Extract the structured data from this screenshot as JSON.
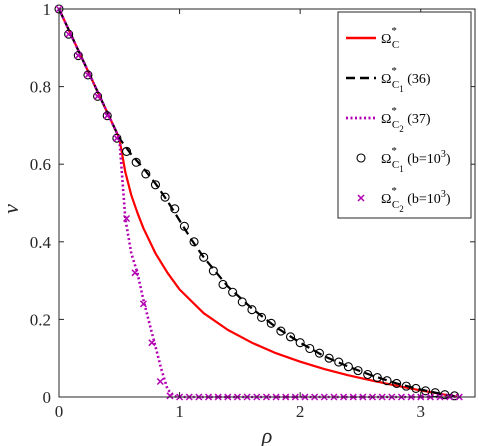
{
  "chart_data": {
    "type": "line",
    "title": "",
    "xlabel": "ρ",
    "ylabel": "ν",
    "xlim": [
      0,
      3.45
    ],
    "ylim": [
      0,
      1
    ],
    "xticks": [
      0,
      1,
      2,
      3
    ],
    "xtick_labels": [
      "0",
      "1",
      "2",
      "3"
    ],
    "yticks": [
      0,
      0.2,
      0.4,
      0.6,
      0.8,
      1
    ],
    "ytick_labels": [
      "0",
      "0.2",
      "0.4",
      "0.6",
      "0.8",
      "1"
    ],
    "grid": false,
    "legend_position": "top-right",
    "colors": {
      "red": "#ff0000",
      "black": "#000000",
      "magenta": "#b300b3"
    },
    "series": [
      {
        "name": "Ω*C",
        "legend": {
          "main": "Ω",
          "sup": "*",
          "sub": "C",
          "sub2": "",
          "suffix": ""
        },
        "style": "line-solid",
        "color": "#ff0000",
        "x": [
          0,
          0.5,
          0.55,
          0.6,
          0.65,
          0.7,
          0.8,
          0.9,
          1.0,
          1.2,
          1.4,
          1.6,
          1.8,
          2.0,
          2.2,
          2.4,
          2.6,
          2.8,
          3.0,
          3.2,
          3.3
        ],
        "y": [
          1,
          0.667,
          0.58,
          0.52,
          0.475,
          0.435,
          0.37,
          0.32,
          0.277,
          0.216,
          0.173,
          0.14,
          0.113,
          0.091,
          0.072,
          0.056,
          0.042,
          0.029,
          0.017,
          0.006,
          0.001
        ]
      },
      {
        "name": "Ω*C1 (36)",
        "legend": {
          "main": "Ω",
          "sup": "*",
          "sub": "C",
          "sub2": "1",
          "suffix": " (36)"
        },
        "style": "line-dashed",
        "color": "#000000",
        "x": [
          0,
          0.5,
          0.6,
          0.7,
          0.8,
          0.9,
          1.0,
          1.1,
          1.2,
          1.4,
          1.6,
          1.8,
          2.0,
          2.2,
          2.4,
          2.6,
          2.8,
          3.0,
          3.2,
          3.3
        ],
        "y": [
          1,
          0.667,
          0.625,
          0.59,
          0.55,
          0.505,
          0.455,
          0.405,
          0.36,
          0.285,
          0.228,
          0.18,
          0.14,
          0.105,
          0.078,
          0.055,
          0.035,
          0.019,
          0.006,
          0.001
        ]
      },
      {
        "name": "Ω*C2 (37)",
        "legend": {
          "main": "Ω",
          "sup": "*",
          "sub": "C",
          "sub2": "2",
          "suffix": " (37)"
        },
        "style": "line-dotted",
        "color": "#b300b3",
        "x": [
          0,
          0.5,
          0.55,
          0.6,
          0.65,
          0.7,
          0.75,
          0.8,
          0.85,
          0.9,
          0.95,
          1.0,
          1.5,
          2.0,
          2.5,
          3.0,
          3.3
        ],
        "y": [
          1,
          0.667,
          0.46,
          0.37,
          0.32,
          0.25,
          0.19,
          0.13,
          0.07,
          0.02,
          0.002,
          0.0,
          0.0,
          0.0,
          0.0,
          0.0,
          0.0
        ]
      },
      {
        "name": "Ω*C1 (b=10^3)",
        "legend": {
          "main": "Ω",
          "sup": "*",
          "sub": "C",
          "sub2": "1",
          "suffix": " (b=10",
          "suffix_sup": "3",
          "suffix_end": ")"
        },
        "style": "marker-circle",
        "color": "#000000",
        "x": [
          0.0,
          0.08,
          0.16,
          0.24,
          0.32,
          0.4,
          0.48,
          0.56,
          0.64,
          0.72,
          0.8,
          0.88,
          0.96,
          1.04,
          1.12,
          1.2,
          1.28,
          1.36,
          1.44,
          1.52,
          1.6,
          1.68,
          1.76,
          1.84,
          1.92,
          2.0,
          2.08,
          2.16,
          2.24,
          2.32,
          2.4,
          2.48,
          2.56,
          2.64,
          2.72,
          2.8,
          2.88,
          2.96,
          3.04,
          3.12,
          3.2,
          3.28
        ],
        "y": [
          1.0,
          0.935,
          0.88,
          0.83,
          0.775,
          0.725,
          0.667,
          0.633,
          0.605,
          0.575,
          0.547,
          0.515,
          0.485,
          0.44,
          0.4,
          0.36,
          0.325,
          0.29,
          0.27,
          0.245,
          0.225,
          0.205,
          0.19,
          0.17,
          0.155,
          0.14,
          0.125,
          0.113,
          0.1,
          0.09,
          0.078,
          0.068,
          0.058,
          0.05,
          0.042,
          0.035,
          0.028,
          0.022,
          0.016,
          0.011,
          0.006,
          0.003
        ]
      },
      {
        "name": "Ω*C2 (b=10^3)",
        "legend": {
          "main": "Ω",
          "sup": "*",
          "sub": "C",
          "sub2": "2",
          "suffix": " (b=10",
          "suffix_sup": "3",
          "suffix_end": ")"
        },
        "style": "marker-x",
        "color": "#b300b3",
        "x": [
          0.0,
          0.08,
          0.16,
          0.24,
          0.32,
          0.4,
          0.48,
          0.56,
          0.63,
          0.7,
          0.77,
          0.84,
          0.92,
          1.0,
          1.08,
          1.16,
          1.24,
          1.32,
          1.4,
          1.48,
          1.56,
          1.64,
          1.72,
          1.8,
          1.88,
          1.96,
          2.04,
          2.12,
          2.2,
          2.28,
          2.36,
          2.44,
          2.52,
          2.6,
          2.68,
          2.76,
          2.84,
          2.92,
          3.0,
          3.08,
          3.16,
          3.24,
          3.32
        ],
        "y": [
          1.0,
          0.935,
          0.88,
          0.83,
          0.775,
          0.725,
          0.667,
          0.46,
          0.32,
          0.24,
          0.14,
          0.04,
          0.003,
          0.0,
          0.0,
          0.0,
          0.0,
          0.0,
          0.0,
          0.0,
          0.0,
          0.0,
          0.0,
          0.0,
          0.0,
          0.0,
          0.0,
          0.0,
          0.0,
          0.0,
          0.0,
          0.0,
          0.0,
          0.0,
          0.0,
          0.0,
          0.0,
          0.0,
          0.0,
          0.0,
          0.0,
          0.0,
          0.0
        ]
      }
    ]
  }
}
